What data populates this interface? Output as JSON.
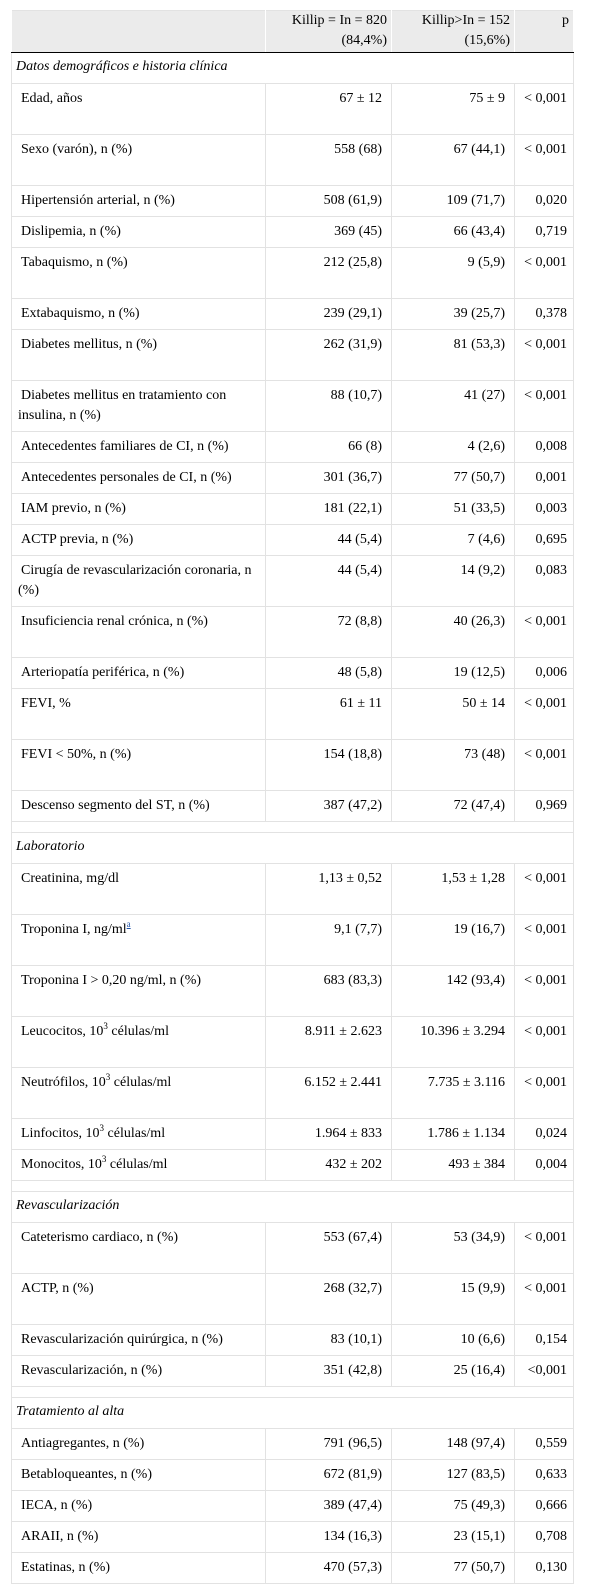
{
  "header": {
    "col1": "",
    "col2_line1": "Killip = In = 820",
    "col2_line2": "(84,4%)",
    "col3_line1": "Killip>In = 152",
    "col3_line2": "(15,6%)",
    "col4": "p"
  },
  "sections": [
    {
      "title": "Datos demográficos e historia clínica",
      "rows": [
        {
          "label": "Edad, años",
          "a": "67 ± 12",
          "b": "75 ± 9",
          "p": "< 0,001"
        },
        {
          "label": "Sexo (varón), n (%)",
          "a": "558 (68)",
          "b": "67 (44,1)",
          "p": "< 0,001"
        },
        {
          "label": "Hipertensión arterial, n (%)",
          "a": "508 (61,9)",
          "b": "109 (71,7)",
          "p": "0,020"
        },
        {
          "label": "Dislipemia, n (%)",
          "a": "369 (45)",
          "b": "66 (43,4)",
          "p": "0,719"
        },
        {
          "label": "Tabaquismo, n (%)",
          "a": "212 (25,8)",
          "b": "9 (5,9)",
          "p": "< 0,001"
        },
        {
          "label": "Extabaquismo, n (%)",
          "a": "239 (29,1)",
          "b": "39 (25,7)",
          "p": "0,378"
        },
        {
          "label": "Diabetes mellitus, n (%)",
          "a": "262 (31,9)",
          "b": "81 (53,3)",
          "p": "< 0,001"
        },
        {
          "label": "Diabetes mellitus en tratamiento con insulina, n (%)",
          "a": "88 (10,7)",
          "b": "41 (27)",
          "p": "< 0,001"
        },
        {
          "label": "Antecedentes familiares de CI, n (%)",
          "a": "66 (8)",
          "b": "4 (2,6)",
          "p": "0,008"
        },
        {
          "label": "Antecedentes personales de CI, n (%)",
          "a": "301 (36,7)",
          "b": "77 (50,7)",
          "p": "0,001"
        },
        {
          "label": "IAM previo, n (%)",
          "a": "181 (22,1)",
          "b": "51 (33,5)",
          "p": "0,003"
        },
        {
          "label": "ACTP previa, n (%)",
          "a": "44 (5,4)",
          "b": "7 (4,6)",
          "p": "0,695"
        },
        {
          "label": "Cirugía de revascularización coronaria, n (%)",
          "a": "44 (5,4)",
          "b": "14 (9,2)",
          "p": "0,083"
        },
        {
          "label": "Insuficiencia renal crónica, n (%)",
          "a": "72 (8,8)",
          "b": "40 (26,3)",
          "p": "< 0,001"
        },
        {
          "label": "Arteriopatía periférica, n (%)",
          "a": "48 (5,8)",
          "b": "19 (12,5)",
          "p": "0,006"
        },
        {
          "label": "FEVI, %",
          "a": "61 ± 11",
          "b": "50 ± 14",
          "p": "< 0,001"
        },
        {
          "label": "FEVI < 50%, n (%)",
          "a": "154 (18,8)",
          "b": "73 (48)",
          "p": "< 0,001"
        },
        {
          "label": "Descenso segmento del ST, n (%)",
          "a": "387 (47,2)",
          "b": "72 (47,4)",
          "p": "0,969"
        }
      ]
    },
    {
      "title": "Laboratorio",
      "rows": [
        {
          "label": "Creatinina, mg/dl",
          "a": "1,13 ± 0,52",
          "b": "1,53 ± 1,28",
          "p": "< 0,001"
        },
        {
          "label": "Troponina I, ng/ml",
          "footnote": "a",
          "a": "9,1 (7,7)",
          "b": "19 (16,7)",
          "p": "< 0,001"
        },
        {
          "label": "Troponina I > 0,20 ng/ml, n (%)",
          "a": "683 (83,3)",
          "b": "142 (93,4)",
          "p": "< 0,001"
        },
        {
          "label": "Leucocitos, 10",
          "sup": "3",
          "label_after": " células/ml",
          "a": "8.911 ± 2.623",
          "b": "10.396 ± 3.294",
          "p": "< 0,001"
        },
        {
          "label": "Neutrófilos, 10",
          "sup": "3",
          "label_after": " células/ml",
          "a": "6.152 ± 2.441",
          "b": "7.735 ± 3.116",
          "p": "< 0,001"
        },
        {
          "label": "Linfocitos, 10",
          "sup": "3",
          "label_after": " células/ml",
          "a": "1.964 ± 833",
          "b": "1.786 ± 1.134",
          "p": "0,024"
        },
        {
          "label": "Monocitos, 10",
          "sup": "3",
          "label_after": " células/ml",
          "a": "432 ± 202",
          "b": "493 ± 384",
          "p": "0,004"
        }
      ]
    },
    {
      "title": "Revascularización",
      "rows": [
        {
          "label": "Cateterismo cardiaco, n (%)",
          "a": "553 (67,4)",
          "b": "53 (34,9)",
          "p": "< 0,001"
        },
        {
          "label": "ACTP, n (%)",
          "a": "268 (32,7)",
          "b": "15 (9,9)",
          "p": "< 0,001"
        },
        {
          "label": "Revascularización quirúrgica, n (%)",
          "a": "83 (10,1)",
          "b": "10 (6,6)",
          "p": "0,154"
        },
        {
          "label": "Revascularización, n (%)",
          "a": "351 (42,8)",
          "b": "25 (16,4)",
          "p": "<0,001"
        }
      ]
    },
    {
      "title": "Tratamiento al alta",
      "rows": [
        {
          "label": "Antiagregantes, n (%)",
          "a": "791 (96,5)",
          "b": "148 (97,4)",
          "p": "0,559"
        },
        {
          "label": "Betabloqueantes, n (%)",
          "a": "672 (81,9)",
          "b": "127 (83,5)",
          "p": "0,633"
        },
        {
          "label": "IECA, n (%)",
          "a": "389 (47,4)",
          "b": "75 (49,3)",
          "p": "0,666"
        },
        {
          "label": "ARAII, n (%)",
          "a": "134 (16,3)",
          "b": "23 (15,1)",
          "p": "0,708"
        },
        {
          "label": "Estatinas, n (%)",
          "a": "470 (57,3)",
          "b": "77 (50,7)",
          "p": "0,130"
        }
      ]
    }
  ]
}
